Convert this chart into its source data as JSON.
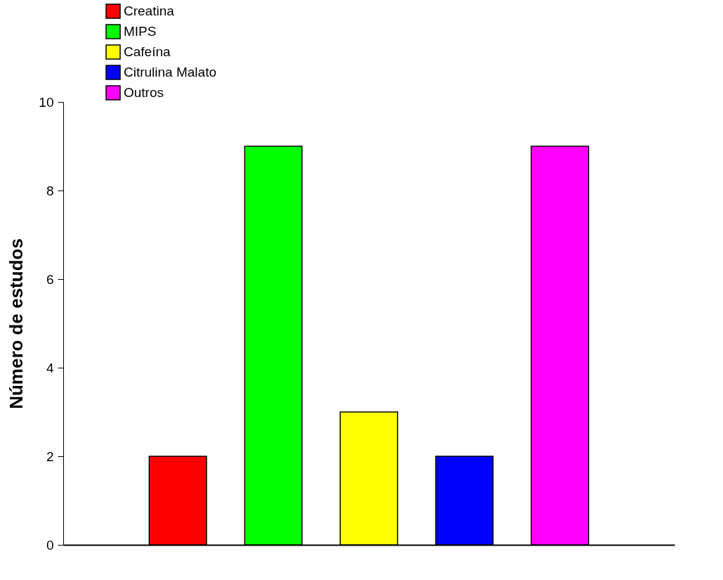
{
  "chart_data": {
    "type": "bar",
    "ylabel": "Número de estudos",
    "stacked": true,
    "categories": [
      null,
      null,
      null,
      null,
      null
    ],
    "series": [
      {
        "name": "Creatina",
        "color": "#ff0000",
        "values": [
          2,
          null,
          null,
          null,
          null
        ]
      },
      {
        "name": "MIPS",
        "color": "#00ff00",
        "values": [
          null,
          9,
          null,
          null,
          null
        ]
      },
      {
        "name": "Cafeína",
        "color": "#ffff00",
        "values": [
          null,
          null,
          3,
          null,
          null
        ]
      },
      {
        "name": "Citrulina Malato",
        "color": "#0000ff",
        "values": [
          null,
          null,
          null,
          2,
          null
        ]
      },
      {
        "name": "Outros",
        "color": "#ff00ff",
        "values": [
          null,
          null,
          null,
          null,
          9
        ]
      }
    ],
    "ylim": [
      0,
      10
    ],
    "yticks": [
      0,
      2,
      4,
      6,
      8,
      10
    ],
    "grid": false,
    "legend": "top left",
    "tick_labels": "y"
  }
}
